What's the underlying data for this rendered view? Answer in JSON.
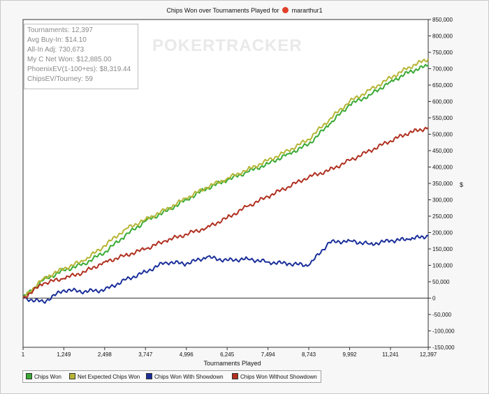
{
  "header": {
    "title_prefix": "Chips Won over Tournaments Played for",
    "player": "mararthur1"
  },
  "watermark": "POKERTRACKER",
  "stats": [
    "Tournaments: 12,397",
    "Avg Buy-In: $14.10",
    "All-In Adj: 730,673",
    "My C Net Won: $12,885.00",
    "PhoenixEV(1-100+es): $8,319.44",
    "ChipsEV/Tourney: 59"
  ],
  "chart_data": {
    "type": "line",
    "title": "Chips Won over Tournaments Played for mararthur1",
    "xlabel": "Tournaments Played",
    "ylabel": "$",
    "xlim": [
      1,
      12397
    ],
    "ylim": [
      -150000,
      850000
    ],
    "x_ticks": [
      1,
      1249,
      2498,
      3747,
      4996,
      6245,
      7494,
      8743,
      9992,
      11241,
      12397
    ],
    "x_tick_labels": [
      "1",
      "1,249",
      "2,498",
      "3,747",
      "4,996",
      "6,245",
      "7,494",
      "8,743",
      "9,992",
      "11,241",
      "12,397"
    ],
    "y_ticks": [
      -150000,
      -100000,
      -50000,
      0,
      50000,
      100000,
      150000,
      200000,
      250000,
      300000,
      350000,
      400000,
      450000,
      500000,
      550000,
      600000,
      650000,
      700000,
      750000,
      800000,
      850000
    ],
    "y_tick_labels": [
      "-150,000",
      "-100,000",
      "-50,000",
      "0",
      "50,000",
      "100,000",
      "150,000",
      "200,000",
      "250,000",
      "300,000",
      "350,000",
      "400,000",
      "450,000",
      "500,000",
      "550,000",
      "600,000",
      "650,000",
      "700,000",
      "750,000",
      "800,000",
      "850,000"
    ],
    "grid": false,
    "legend_position": "bottom",
    "x": [
      1,
      625,
      1249,
      1875,
      2498,
      3120,
      3747,
      4370,
      4996,
      5620,
      6245,
      6870,
      7494,
      8120,
      8743,
      9370,
      9992,
      10620,
      11241,
      11820,
      12397
    ],
    "series": [
      {
        "name": "Chips Won",
        "color": "#3aaa35",
        "values": [
          0,
          55000,
          85000,
          105000,
          140000,
          190000,
          235000,
          265000,
          300000,
          335000,
          360000,
          385000,
          410000,
          440000,
          470000,
          530000,
          590000,
          620000,
          660000,
          690000,
          710000
        ]
      },
      {
        "name": "Net Expected Chips Won",
        "color": "#b5b535",
        "values": [
          0,
          60000,
          90000,
          115000,
          160000,
          210000,
          240000,
          270000,
          305000,
          338000,
          365000,
          392000,
          420000,
          450000,
          485000,
          545000,
          600000,
          635000,
          672000,
          705000,
          730000
        ]
      },
      {
        "name": "Chips Won With Showdown",
        "color": "#1b2f9a",
        "values": [
          0,
          -12000,
          25000,
          20000,
          25000,
          55000,
          80000,
          110000,
          105000,
          125000,
          115000,
          120000,
          110000,
          105000,
          100000,
          170000,
          175000,
          165000,
          175000,
          180000,
          190000
        ]
      },
      {
        "name": "Chips Won Without Showdown",
        "color": "#b03020",
        "values": [
          0,
          45000,
          60000,
          80000,
          110000,
          130000,
          150000,
          175000,
          195000,
          215000,
          245000,
          280000,
          310000,
          340000,
          370000,
          390000,
          420000,
          450000,
          480000,
          505000,
          520000
        ]
      }
    ]
  }
}
